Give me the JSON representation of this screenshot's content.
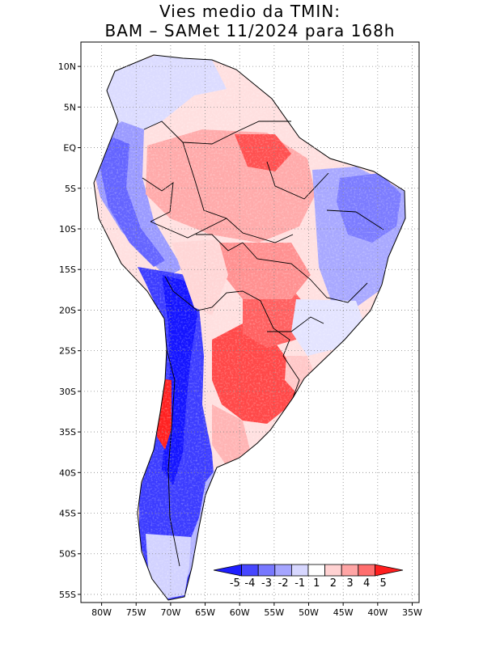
{
  "title": {
    "line1": "Vies medio da TMIN:",
    "line2": "BAM – SAMet 11/2024  para 168h"
  },
  "map": {
    "lat_range": [
      -56,
      13
    ],
    "lon_range": [
      -83,
      -34
    ],
    "lat_labels": [
      {
        "v": 10,
        "t": "10N"
      },
      {
        "v": 5,
        "t": "5N"
      },
      {
        "v": 0,
        "t": "EQ"
      },
      {
        "v": -5,
        "t": "5S"
      },
      {
        "v": -10,
        "t": "10S"
      },
      {
        "v": -15,
        "t": "15S"
      },
      {
        "v": -20,
        "t": "20S"
      },
      {
        "v": -25,
        "t": "25S"
      },
      {
        "v": -30,
        "t": "30S"
      },
      {
        "v": -35,
        "t": "35S"
      },
      {
        "v": -40,
        "t": "40S"
      },
      {
        "v": -45,
        "t": "45S"
      },
      {
        "v": -50,
        "t": "50S"
      },
      {
        "v": -55,
        "t": "55S"
      }
    ],
    "lon_labels": [
      {
        "v": -80,
        "t": "80W"
      },
      {
        "v": -75,
        "t": "75W"
      },
      {
        "v": -70,
        "t": "70W"
      },
      {
        "v": -65,
        "t": "65W"
      },
      {
        "v": -60,
        "t": "60W"
      },
      {
        "v": -55,
        "t": "55W"
      },
      {
        "v": -50,
        "t": "50W"
      },
      {
        "v": -45,
        "t": "45W"
      },
      {
        "v": -40,
        "t": "40W"
      },
      {
        "v": -35,
        "t": "35W"
      }
    ]
  },
  "colorbar": {
    "labels": [
      "-5",
      "-4",
      "-3",
      "-2",
      "-1",
      "1",
      "2",
      "3",
      "4",
      "5"
    ],
    "colors": [
      "#1e1eff",
      "#4646ff",
      "#7878ff",
      "#a5a5ff",
      "#d7d7ff",
      "#ffffff",
      "#ffd2d2",
      "#ffa5a5",
      "#ff6e6e",
      "#ff1e1e"
    ]
  }
}
